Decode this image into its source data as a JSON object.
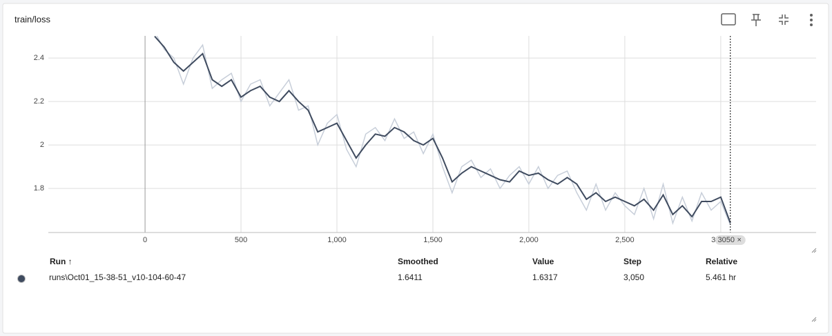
{
  "chart_data": {
    "type": "line",
    "title": "train/loss",
    "x": [
      50,
      100,
      150,
      200,
      250,
      300,
      350,
      400,
      450,
      500,
      550,
      600,
      650,
      700,
      750,
      800,
      850,
      900,
      950,
      1000,
      1050,
      1100,
      1150,
      1200,
      1250,
      1300,
      1350,
      1400,
      1450,
      1500,
      1550,
      1600,
      1650,
      1700,
      1750,
      1800,
      1850,
      1900,
      1950,
      2000,
      2050,
      2100,
      2150,
      2200,
      2250,
      2300,
      2350,
      2400,
      2450,
      2500,
      2550,
      2600,
      2650,
      2700,
      2750,
      2800,
      2850,
      2900,
      2950,
      3000,
      3050
    ],
    "series": [
      {
        "color": "#c7ced9",
        "values": [
          2.52,
          2.44,
          2.4,
          2.28,
          2.4,
          2.46,
          2.26,
          2.3,
          2.33,
          2.2,
          2.28,
          2.3,
          2.18,
          2.24,
          2.3,
          2.16,
          2.18,
          2.0,
          2.1,
          2.14,
          1.98,
          1.9,
          2.05,
          2.08,
          2.02,
          2.12,
          2.03,
          2.06,
          1.96,
          2.05,
          1.9,
          1.78,
          1.9,
          1.93,
          1.85,
          1.89,
          1.8,
          1.86,
          1.9,
          1.82,
          1.9,
          1.8,
          1.86,
          1.88,
          1.78,
          1.7,
          1.82,
          1.7,
          1.78,
          1.72,
          1.68,
          1.8,
          1.66,
          1.82,
          1.64,
          1.76,
          1.65,
          1.78,
          1.7,
          1.74,
          1.6317
        ]
      },
      {
        "color": "#3f4b5f",
        "values": [
          2.5,
          2.45,
          2.38,
          2.34,
          2.38,
          2.42,
          2.3,
          2.27,
          2.3,
          2.22,
          2.25,
          2.27,
          2.22,
          2.2,
          2.25,
          2.2,
          2.16,
          2.06,
          2.08,
          2.1,
          2.02,
          1.94,
          2.0,
          2.05,
          2.04,
          2.08,
          2.06,
          2.02,
          2.0,
          2.03,
          1.94,
          1.83,
          1.87,
          1.9,
          1.88,
          1.86,
          1.84,
          1.83,
          1.88,
          1.86,
          1.87,
          1.84,
          1.82,
          1.85,
          1.82,
          1.75,
          1.78,
          1.74,
          1.76,
          1.74,
          1.72,
          1.75,
          1.7,
          1.77,
          1.68,
          1.72,
          1.67,
          1.74,
          1.74,
          1.76,
          1.6411
        ]
      }
    ],
    "xlim": [
      -504,
      3497
    ],
    "ylim": [
      1.597,
      2.502
    ],
    "xticks": [
      0,
      500,
      {
        "value": 1000,
        "label": "1,000"
      },
      {
        "value": 1500,
        "label": "1,500"
      },
      {
        "value": 2000,
        "label": "2,000"
      },
      {
        "value": 2500,
        "label": "2,500"
      },
      {
        "value": 3000,
        "label": "3,000"
      }
    ],
    "yticks": [
      1.8,
      2,
      2.2,
      2.4
    ],
    "grid": true,
    "hover_x": 3050
  },
  "table": {
    "columns": [
      "Run ↑",
      "Smoothed",
      "Value",
      "Step",
      "Relative"
    ],
    "rows": [
      [
        "runs\\Oct01_15-38-51_v10-104-60-47",
        "1.6411",
        "1.6317",
        "3,050",
        "5.461 hr"
      ]
    ],
    "run_color": "#3f4b5f"
  }
}
